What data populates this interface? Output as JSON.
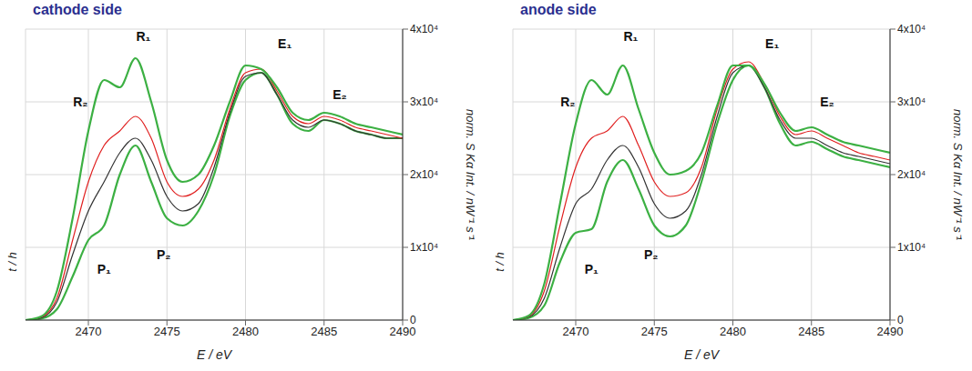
{
  "chart_data": [
    {
      "type": "line",
      "title": "cathode side",
      "x_label": "E / eV",
      "y_label": "norm. S Kα Int. / nW⁻¹ s⁻¹",
      "t_label": "t / h",
      "xlim": [
        2466,
        2490
      ],
      "xticks": [
        2470,
        2475,
        2480,
        2485,
        2490
      ],
      "ylim": [
        0,
        40000
      ],
      "yticks": [
        0,
        {
          "value": 10000,
          "label": "1x10⁴"
        },
        {
          "value": 20000,
          "label": "2x10⁴"
        },
        {
          "value": 30000,
          "label": "3x10⁴"
        },
        {
          "value": 40000,
          "label": "4x10⁴"
        }
      ],
      "grid": true,
      "x": [
        2466,
        2467,
        2468,
        2469,
        2470,
        2471,
        2472,
        2473,
        2474,
        2475,
        2476,
        2477,
        2478,
        2479,
        2480,
        2481,
        2482,
        2483,
        2484,
        2485,
        2486,
        2487,
        2488,
        2489,
        2490
      ],
      "series": [
        {
          "color": "#3cb043",
          "values": [
            0,
            200,
            1500,
            6000,
            11000,
            13000,
            20000,
            24000,
            19000,
            14000,
            13000,
            15000,
            20000,
            28000,
            33000,
            34000,
            31000,
            27000,
            26000,
            27500,
            27000,
            26000,
            25500,
            25000,
            25000
          ]
        },
        {
          "color": "#333333",
          "values": [
            0,
            300,
            2500,
            9000,
            15000,
            19000,
            23000,
            25000,
            22000,
            17000,
            15000,
            16000,
            21000,
            28500,
            33500,
            34000,
            31000,
            27500,
            26500,
            27500,
            27000,
            26000,
            25500,
            25000,
            25000
          ]
        },
        {
          "color": "#e02020",
          "values": [
            0,
            400,
            3000,
            11000,
            19000,
            24000,
            26000,
            28000,
            25000,
            19000,
            17000,
            18000,
            22000,
            29000,
            34000,
            34500,
            31500,
            28000,
            27000,
            28000,
            27500,
            26500,
            26000,
            25500,
            25000
          ]
        },
        {
          "color": "#3cb043",
          "values": [
            0,
            500,
            4000,
            14000,
            26000,
            33000,
            32000,
            36000,
            30000,
            22000,
            19000,
            20000,
            24000,
            30000,
            35000,
            34500,
            32000,
            28500,
            27500,
            28500,
            28000,
            27000,
            26500,
            26000,
            25500
          ]
        }
      ],
      "annotations": [
        {
          "text": "P₁",
          "x": 2471,
          "y": 7000
        },
        {
          "text": "P₂",
          "x": 2474.8,
          "y": 9000
        },
        {
          "text": "R₂",
          "x": 2469.5,
          "y": 30000
        },
        {
          "text": "R₁",
          "x": 2473.5,
          "y": 39000
        },
        {
          "text": "E₁",
          "x": 2482.5,
          "y": 38000
        },
        {
          "text": "E₂",
          "x": 2486,
          "y": 31000
        }
      ]
    },
    {
      "type": "line",
      "title": "anode side",
      "x_label": "E / eV",
      "y_label": "norm. S Kα Int. / nW⁻¹ s⁻¹",
      "t_label": "t / h",
      "xlim": [
        2466,
        2490
      ],
      "xticks": [
        2470,
        2475,
        2480,
        2485,
        2490
      ],
      "ylim": [
        0,
        40000
      ],
      "yticks": [
        0,
        {
          "value": 10000,
          "label": "1x10⁴"
        },
        {
          "value": 20000,
          "label": "2x10⁴"
        },
        {
          "value": 30000,
          "label": "3x10⁴"
        },
        {
          "value": 40000,
          "label": "4x10⁴"
        }
      ],
      "grid": true,
      "x": [
        2466,
        2467,
        2468,
        2469,
        2470,
        2471,
        2472,
        2473,
        2474,
        2475,
        2476,
        2477,
        2478,
        2479,
        2480,
        2481,
        2482,
        2483,
        2484,
        2485,
        2486,
        2487,
        2488,
        2489,
        2490
      ],
      "series": [
        {
          "color": "#3cb043",
          "values": [
            0,
            300,
            2000,
            8000,
            12000,
            12500,
            19000,
            22000,
            18000,
            13000,
            11500,
            13000,
            19000,
            27000,
            33000,
            35000,
            32000,
            27000,
            24000,
            24500,
            23500,
            22500,
            22000,
            21500,
            21000
          ]
        },
        {
          "color": "#333333",
          "values": [
            0,
            400,
            3000,
            10000,
            16000,
            18000,
            22000,
            24000,
            21000,
            16000,
            14000,
            15000,
            20000,
            28000,
            34000,
            35000,
            32000,
            27500,
            25000,
            25000,
            24000,
            23000,
            22500,
            22000,
            21500
          ]
        },
        {
          "color": "#e02020",
          "values": [
            0,
            500,
            4000,
            13000,
            21000,
            25000,
            26000,
            28000,
            24000,
            19000,
            17000,
            17500,
            21000,
            29000,
            34500,
            35500,
            32500,
            28000,
            25500,
            26000,
            25000,
            24000,
            23000,
            22500,
            22000
          ]
        },
        {
          "color": "#3cb043",
          "values": [
            0,
            600,
            5000,
            16000,
            27000,
            33000,
            31000,
            35000,
            29000,
            23000,
            20000,
            20500,
            23000,
            29500,
            35000,
            35000,
            32500,
            28500,
            26000,
            26500,
            25500,
            24500,
            24000,
            23500,
            23000
          ]
        }
      ],
      "annotations": [
        {
          "text": "P₁",
          "x": 2471,
          "y": 7000
        },
        {
          "text": "P₂",
          "x": 2474.8,
          "y": 9000
        },
        {
          "text": "R₂",
          "x": 2469.5,
          "y": 30000
        },
        {
          "text": "R₁",
          "x": 2473.5,
          "y": 39000
        },
        {
          "text": "E₁",
          "x": 2482.5,
          "y": 38000
        },
        {
          "text": "E₂",
          "x": 2486,
          "y": 30000
        }
      ]
    }
  ]
}
